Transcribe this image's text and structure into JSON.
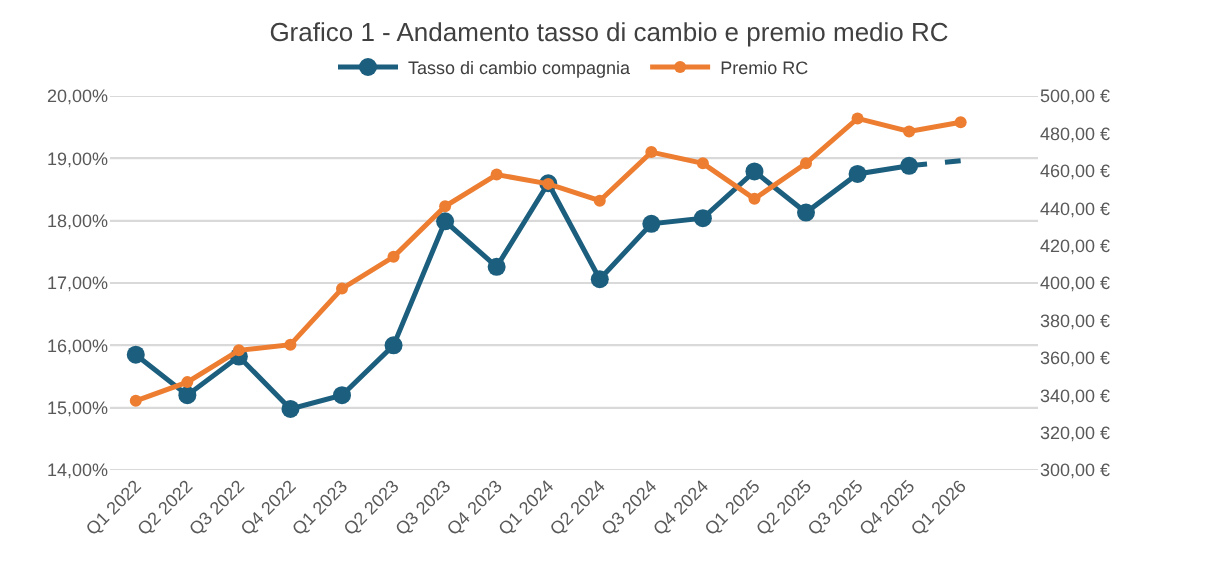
{
  "chart_data": {
    "type": "line",
    "title": "Grafico 1 - Andamento tasso di cambio e premio medio RC",
    "categories": [
      "Q1 2022",
      "Q2 2022",
      "Q3 2022",
      "Q4 2022",
      "Q1 2023",
      "Q2 2023",
      "Q3 2023",
      "Q4 2023",
      "Q1 2024",
      "Q2 2024",
      "Q3 2024",
      "Q4 2024",
      "Q1 2025",
      "Q2 2025",
      "Q3 2025",
      "Q4 2025",
      "Q1 2026"
    ],
    "series": [
      {
        "name": "Tasso di cambio compagnia",
        "color": "#1b5e7e",
        "marker": "circle",
        "line_style": "solid",
        "values": [
          15.85,
          15.2,
          15.82,
          14.98,
          15.2,
          16.0,
          17.99,
          17.26,
          18.6,
          17.06,
          17.95,
          18.04,
          18.79,
          18.13,
          18.75,
          18.88,
          null
        ]
      },
      {
        "name": "Premio RC",
        "color": "#ed7d31",
        "marker": "circle",
        "line_style": "solid",
        "axis": "y2",
        "values": [
          337,
          347,
          364,
          367,
          397,
          414,
          441,
          458,
          453,
          444,
          470,
          464,
          445,
          464,
          488,
          481,
          486
        ]
      },
      {
        "color": "#1b5e7e",
        "line_style": "dashed",
        "values": [
          null,
          null,
          null,
          null,
          null,
          null,
          null,
          null,
          null,
          null,
          null,
          null,
          null,
          null,
          null,
          18.88,
          18.96
        ]
      }
    ],
    "ylim": [
      14,
      20
    ],
    "yticks": [
      {
        "value": 14,
        "label": "14,00%"
      },
      {
        "value": 15,
        "label": "15,00%"
      },
      {
        "value": 16,
        "label": "16,00%"
      },
      {
        "value": 17,
        "label": "17,00%"
      },
      {
        "value": 18,
        "label": "18,00%"
      },
      {
        "value": 19,
        "label": "19,00%"
      },
      {
        "value": 20,
        "label": "20,00%"
      }
    ],
    "y2lim": [
      300,
      500
    ],
    "y2ticks": [
      {
        "value": 300,
        "label": "300,00 €"
      },
      {
        "value": 320,
        "label": "320,00 €"
      },
      {
        "value": 340,
        "label": "340,00 €"
      },
      {
        "value": 360,
        "label": "360,00 €"
      },
      {
        "value": 380,
        "label": "380,00 €"
      },
      {
        "value": 400,
        "label": "400,00 €"
      },
      {
        "value": 420,
        "label": "420,00 €"
      },
      {
        "value": 440,
        "label": "440,00 €"
      },
      {
        "value": 460,
        "label": "460,00 €"
      },
      {
        "value": 480,
        "label": "480,00 €"
      },
      {
        "value": 500,
        "label": "500,00 €"
      }
    ],
    "grid": "y",
    "legend": "top"
  }
}
